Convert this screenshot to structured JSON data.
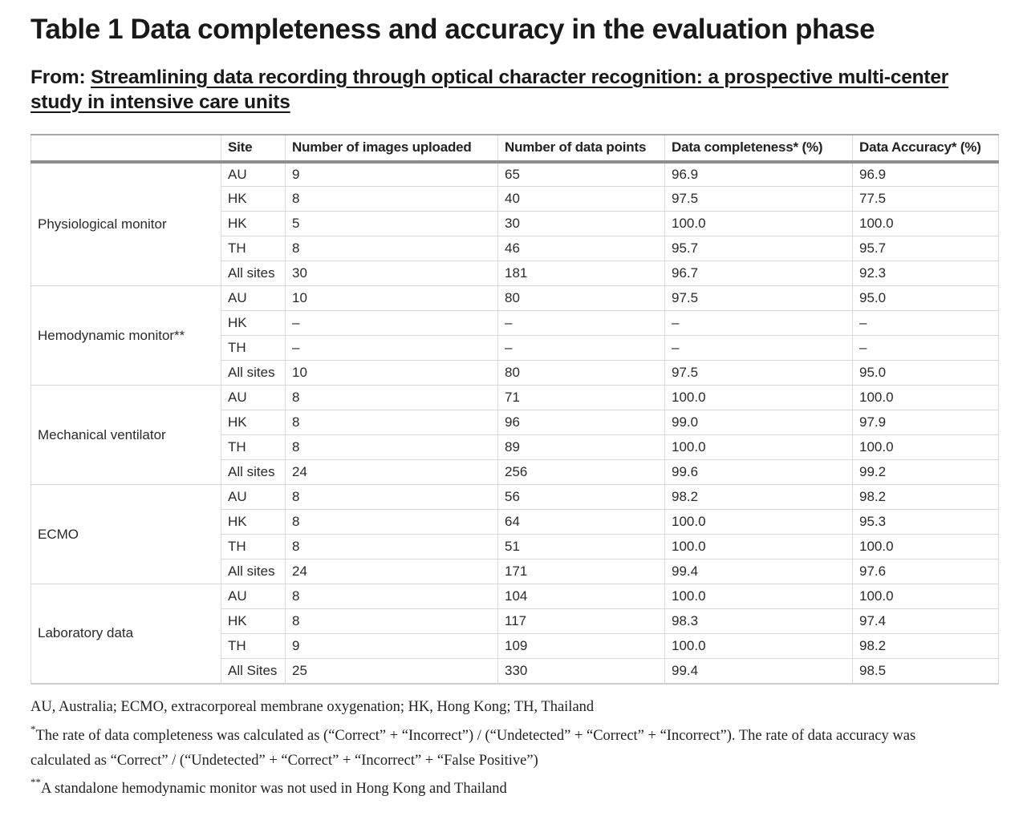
{
  "page": {
    "title": "Table 1 Data completeness and accuracy in the evaluation phase",
    "from_prefix": "From: ",
    "article_title": "Streamlining data recording through optical character recognition: a prospective multi-center study in intensive care units"
  },
  "table": {
    "columns": [
      "",
      "Site",
      "Number of images uploaded",
      "Number of data points",
      "Data completeness* (%)",
      "Data Accuracy* (%)"
    ],
    "groups": [
      {
        "category": "Physiological monitor",
        "rows": [
          [
            "AU",
            "9",
            "65",
            "96.9",
            "96.9"
          ],
          [
            "HK",
            "8",
            "40",
            "97.5",
            "77.5"
          ],
          [
            "HK",
            "5",
            "30",
            "100.0",
            "100.0"
          ],
          [
            "TH",
            "8",
            "46",
            "95.7",
            "95.7"
          ],
          [
            "All sites",
            "30",
            "181",
            "96.7",
            "92.3"
          ]
        ]
      },
      {
        "category": "Hemodynamic monitor**",
        "rows": [
          [
            "AU",
            "10",
            "80",
            "97.5",
            "95.0"
          ],
          [
            "HK",
            "–",
            "–",
            "–",
            "–"
          ],
          [
            "TH",
            "–",
            "–",
            "–",
            "–"
          ],
          [
            "All sites",
            "10",
            "80",
            "97.5",
            "95.0"
          ]
        ]
      },
      {
        "category": "Mechanical ventilator",
        "rows": [
          [
            "AU",
            "8",
            "71",
            "100.0",
            "100.0"
          ],
          [
            "HK",
            "8",
            "96",
            "99.0",
            "97.9"
          ],
          [
            "TH",
            "8",
            "89",
            "100.0",
            "100.0"
          ],
          [
            "All sites",
            "24",
            "256",
            "99.6",
            "99.2"
          ]
        ]
      },
      {
        "category": "ECMO",
        "rows": [
          [
            "AU",
            "8",
            "56",
            "98.2",
            "98.2"
          ],
          [
            "HK",
            "8",
            "64",
            "100.0",
            "95.3"
          ],
          [
            "TH",
            "8",
            "51",
            "100.0",
            "100.0"
          ],
          [
            "All sites",
            "24",
            "171",
            "99.4",
            "97.6"
          ]
        ]
      },
      {
        "category": "Laboratory data",
        "rows": [
          [
            "AU",
            "8",
            "104",
            "100.0",
            "100.0"
          ],
          [
            "HK",
            "8",
            "117",
            "98.3",
            "97.4"
          ],
          [
            "TH",
            "9",
            "109",
            "100.0",
            "98.2"
          ],
          [
            "All Sites",
            "25",
            "330",
            "99.4",
            "98.5"
          ]
        ]
      }
    ]
  },
  "footnotes": [
    {
      "marker": "",
      "text": "AU, Australia; ECMO, extracorporeal membrane oxygenation; HK, Hong Kong; TH, Thailand"
    },
    {
      "marker": "*",
      "text": "The rate of data completeness was calculated as (“Correct” + “Incorrect”) / (“Undetected” + “Correct” + “Incorrect”). The rate of data accuracy was calculated as “Correct” / (“Undetected” + “Correct” + “Incorrect” + “False Positive”)"
    },
    {
      "marker": "**",
      "text": "A standalone hemodynamic monitor was not used in Hong Kong and Thailand"
    }
  ]
}
